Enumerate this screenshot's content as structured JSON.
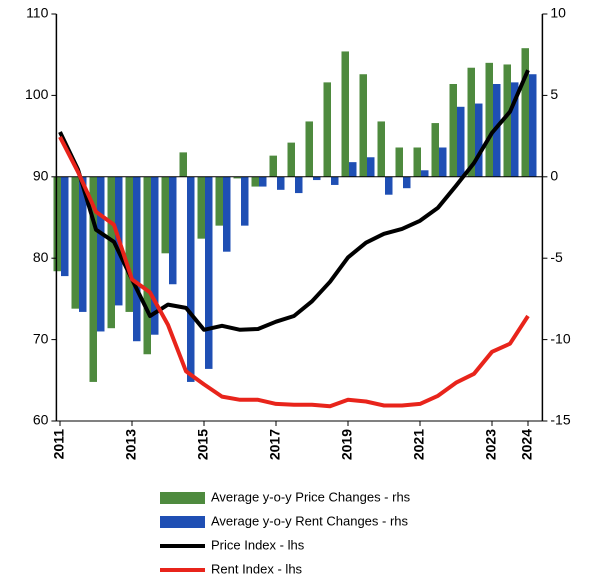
{
  "chart_data": {
    "type": "bar-line",
    "x": [
      2011,
      2011.5,
      2012,
      2012.5,
      2013,
      2013.5,
      2014,
      2014.5,
      2015,
      2015.5,
      2016,
      2016.5,
      2017,
      2017.5,
      2018,
      2018.5,
      2019,
      2019.5,
      2020,
      2020.5,
      2021,
      2021.5,
      2022,
      2022.5,
      2023,
      2023.5,
      2024
    ],
    "xlim": [
      2010.9,
      2024.4
    ],
    "xticks": [
      2011,
      2013,
      2015,
      2017,
      2019,
      2021,
      2023,
      2024
    ],
    "ylim": [
      60,
      110
    ],
    "yticks": [
      60,
      70,
      80,
      90,
      100,
      110
    ],
    "y2lim": [
      -15,
      10
    ],
    "y2ticks": [
      -15,
      -10,
      -5,
      0,
      5,
      10
    ],
    "grid": false,
    "series": [
      {
        "name": "Average y-o-y Price Changes - rhs",
        "type": "bar",
        "axis": "y2",
        "color": "#4e8a3e",
        "values": [
          -5.8,
          -8.1,
          -12.6,
          -9.3,
          -8.3,
          -10.9,
          -4.7,
          1.5,
          -3.8,
          -3.0,
          -0.1,
          -0.6,
          1.3,
          2.1,
          3.4,
          5.8,
          7.7,
          6.3,
          3.4,
          1.8,
          1.8,
          3.3,
          5.7,
          6.7,
          7.0,
          6.9,
          7.9
        ]
      },
      {
        "name": "Average y-o-y Rent Changes - rhs",
        "type": "bar",
        "axis": "y2",
        "color": "#1f4fb4",
        "values": [
          -6.1,
          -8.3,
          -9.5,
          -7.9,
          -10.1,
          -9.7,
          -6.6,
          -12.6,
          -11.8,
          -4.6,
          -3.0,
          -0.6,
          -0.8,
          -1.0,
          -0.2,
          -0.5,
          0.9,
          1.2,
          -1.1,
          -0.7,
          0.4,
          1.8,
          4.3,
          4.5,
          5.7,
          5.8,
          6.3
        ]
      },
      {
        "name": "Price Index - lhs",
        "type": "line",
        "color": "#000000",
        "values": [
          95.5,
          90.9,
          83.5,
          82.0,
          77.4,
          72.9,
          74.3,
          73.9,
          71.2,
          71.7,
          71.2,
          71.3,
          72.2,
          72.9,
          74.7,
          77.1,
          80.1,
          81.9,
          83.0,
          83.6,
          84.6,
          86.2,
          88.9,
          91.7,
          95.4,
          98.0,
          103.1
        ]
      },
      {
        "name": "Rent Index - lhs",
        "type": "line",
        "color": "#e8241b",
        "values": [
          94.9,
          90.6,
          85.7,
          84.1,
          77.4,
          75.8,
          71.8,
          66.1,
          64.5,
          63.0,
          62.6,
          62.6,
          62.1,
          62.0,
          62.0,
          61.8,
          62.6,
          62.4,
          61.9,
          61.9,
          62.1,
          63.1,
          64.7,
          65.8,
          68.5,
          69.5,
          72.9
        ]
      }
    ]
  }
}
